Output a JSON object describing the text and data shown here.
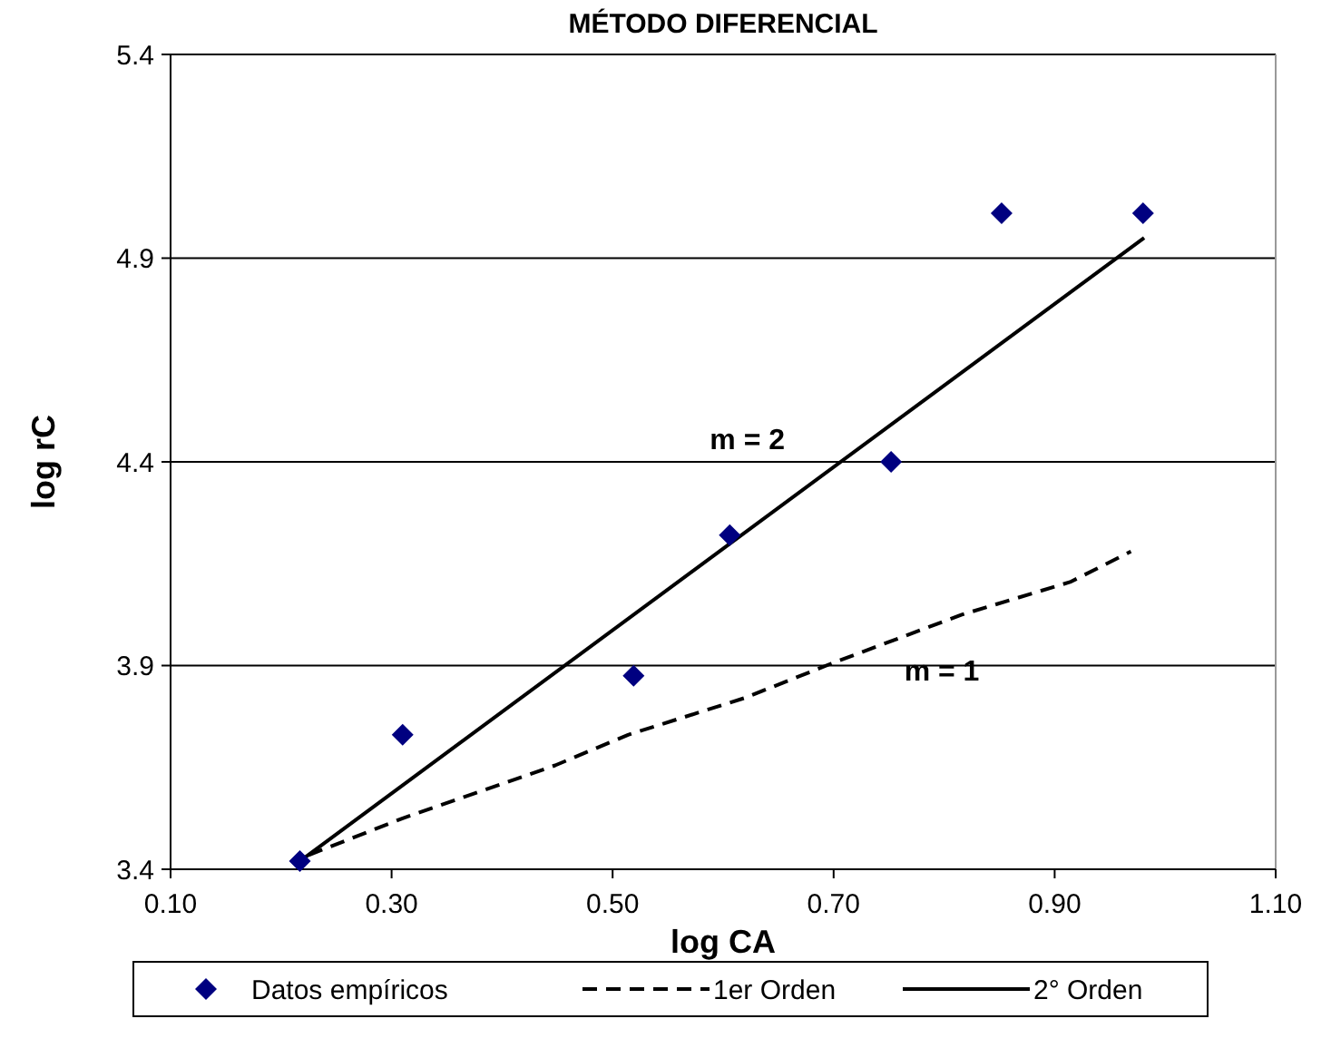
{
  "chart_data": {
    "type": "scatter",
    "title": "MÉTODO DIFERENCIAL",
    "xlabel": "log CA",
    "ylabel": "log rC",
    "xlim": [
      0.1,
      1.1
    ],
    "xticks": [
      {
        "value": 0.1,
        "label": "0.10"
      },
      {
        "value": 0.3,
        "label": "0.30"
      },
      {
        "value": 0.5,
        "label": "0.50"
      },
      {
        "value": 0.7,
        "label": "0.70"
      },
      {
        "value": 0.9,
        "label": "0.90"
      },
      {
        "value": 1.1,
        "label": "1.10"
      }
    ],
    "ylim": [
      3.4,
      5.4
    ],
    "yticks": [
      3.4,
      3.9,
      4.4,
      4.9,
      5.4
    ],
    "grid": "y",
    "legend": "bottom",
    "series": [
      {
        "name": "Datos empíricos",
        "marker": "diamond",
        "color": "#000080",
        "x": [
          0.217,
          0.31,
          0.519,
          0.606,
          0.752,
          0.852,
          0.98
        ],
        "values": [
          3.42,
          3.73,
          3.875,
          4.22,
          4.4,
          5.01,
          5.01
        ]
      },
      {
        "name": "1er Orden",
        "type": "line",
        "line_style": "dashed",
        "color": "#000000",
        "x": [
          0.225,
          0.31,
          0.448,
          0.514,
          0.619,
          0.698,
          0.816,
          0.914,
          0.969
        ],
        "values": [
          3.435,
          3.525,
          3.655,
          3.73,
          3.82,
          3.905,
          4.025,
          4.105,
          4.18
        ]
      },
      {
        "name": "2° Orden",
        "type": "line",
        "line_style": "solid",
        "color": "#000000",
        "x": [
          0.217,
          0.981
        ],
        "values": [
          3.42,
          4.95
        ]
      }
    ],
    "annotations": [
      "m = 2",
      "m = 1"
    ]
  }
}
